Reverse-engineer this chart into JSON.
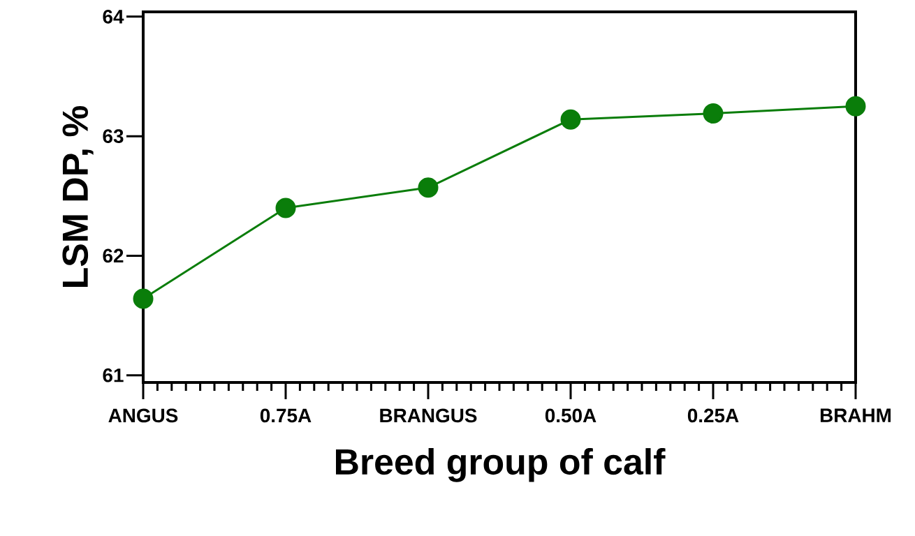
{
  "chart_data": {
    "type": "line",
    "xlabel": "Breed group of calf",
    "ylabel": "LSM DP, %",
    "categories": [
      "ANGUS",
      "0.75A",
      "BRANGUS",
      "0.50A",
      "0.25A",
      "BRAHM"
    ],
    "values": [
      61.64,
      62.4,
      62.57,
      63.14,
      63.19,
      63.25
    ],
    "color": "#0a7d0a",
    "marker": "circle",
    "line_style": "solid",
    "ylim": [
      60.94,
      64.04
    ],
    "yticks": [
      61,
      62,
      63,
      64
    ],
    "grid": false
  }
}
